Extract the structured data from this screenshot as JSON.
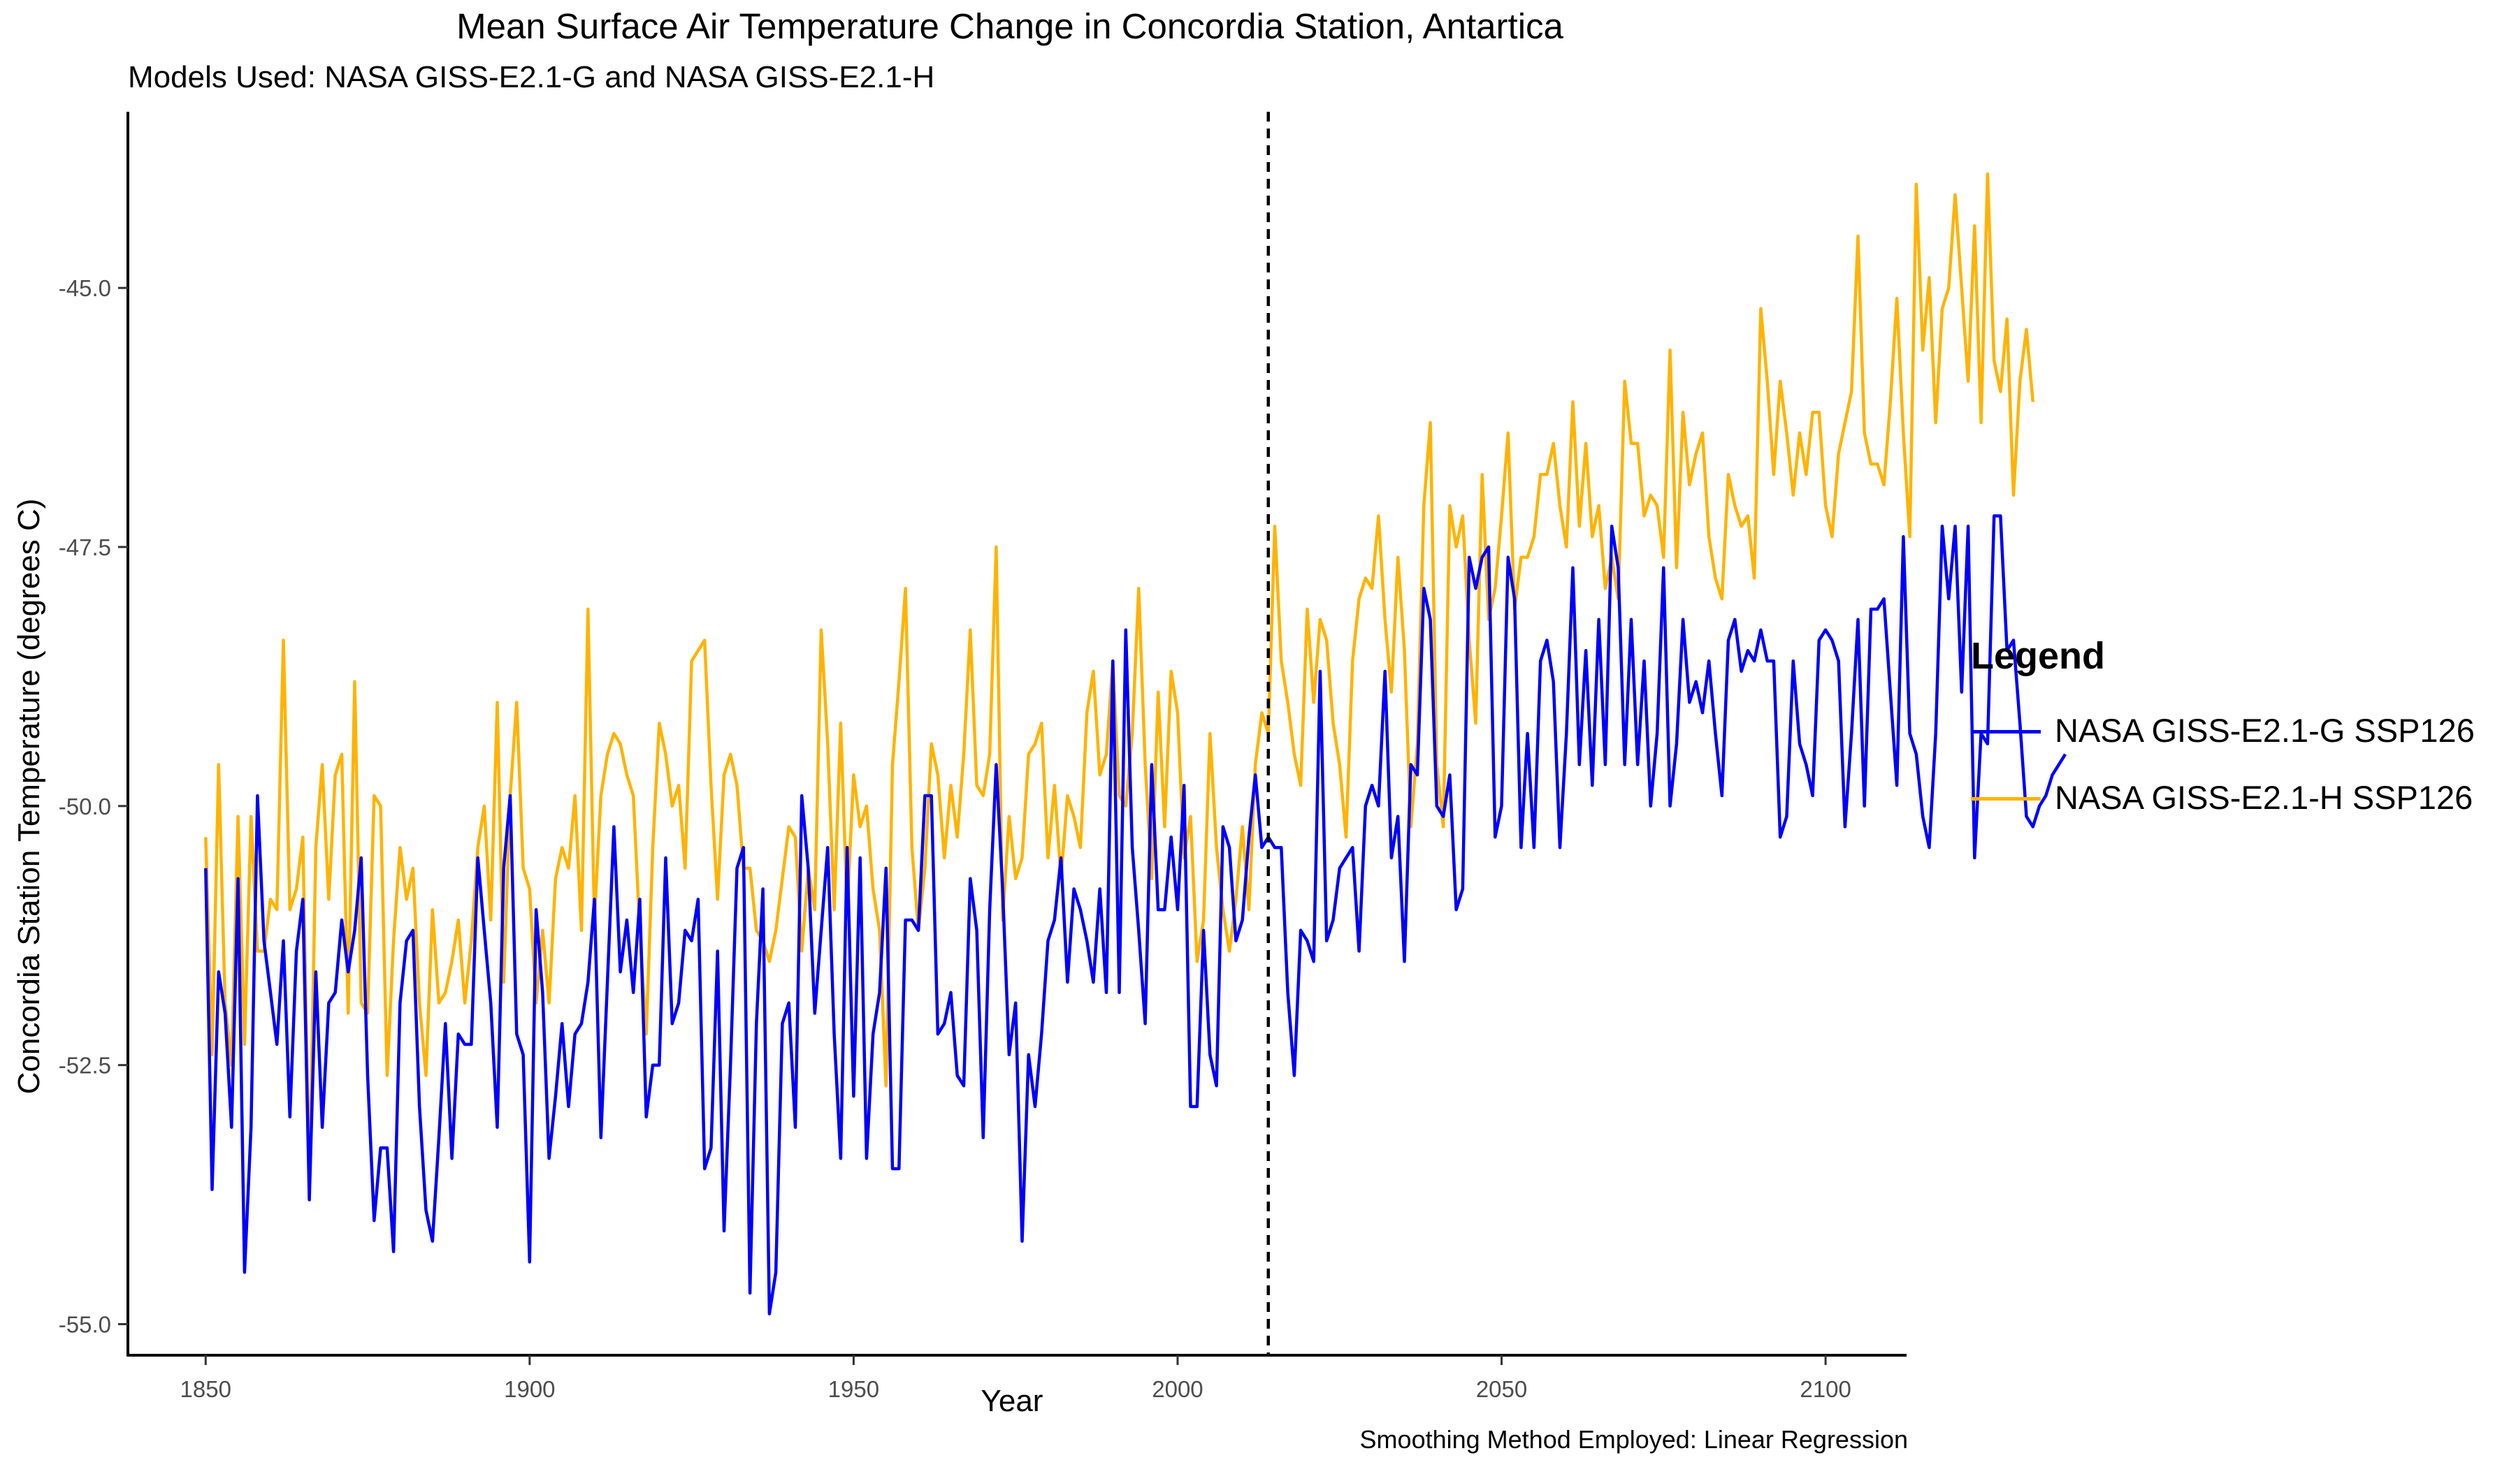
{
  "chart_data": {
    "type": "line",
    "title": "Mean Surface Air Temperature Change in Concordia Station, Antartica",
    "subtitle": "Models Used: NASA GISS-E2.1-G and NASA GISS-E2.1-H",
    "caption": "Smoothing Method Employed: Linear Regression",
    "xlabel": "Year",
    "ylabel": "Concordia Station Temperature (degrees C)",
    "xlim": [
      1838,
      2112.5
    ],
    "ylim": [
      -55.3,
      -43.3
    ],
    "x_ticks": [
      1850,
      1900,
      1950,
      2000,
      2050,
      2100
    ],
    "x_tick_labels": [
      "1850",
      "1900",
      "1950",
      "2000",
      "2050",
      "2100"
    ],
    "y_ticks": [
      -55.0,
      -52.5,
      -50.0,
      -47.5,
      -45.0
    ],
    "y_tick_labels": [
      "-55.0",
      "-52.5",
      "-50.0",
      "-47.5",
      "-45.0"
    ],
    "grid": false,
    "reference_line": {
      "x": 2014,
      "style": "dashed",
      "color": "#000000"
    },
    "legend": {
      "title": "Legend",
      "position": "right"
    },
    "x_start": 1850,
    "series": [
      {
        "name": "NASA GISS-E2.1-G SSP126",
        "color": "#0000ff",
        "values": [
          -50.6,
          -53.7,
          -51.6,
          -52.0,
          -53.1,
          -50.7,
          -54.5,
          -53.1,
          -49.9,
          -51.3,
          -51.8,
          -52.3,
          -51.3,
          -53.0,
          -51.4,
          -50.9,
          -53.8,
          -51.6,
          -53.1,
          -51.9,
          -51.8,
          -51.1,
          -51.6,
          -51.2,
          -50.5,
          -52.6,
          -54.0,
          -53.3,
          -53.3,
          -54.3,
          -51.9,
          -51.3,
          -51.2,
          -52.9,
          -53.9,
          -54.2,
          -53.2,
          -52.1,
          -53.4,
          -52.2,
          -52.3,
          -52.3,
          -50.5,
          -51.2,
          -51.9,
          -53.1,
          -50.6,
          -49.9,
          -52.2,
          -52.4,
          -54.4,
          -51.0,
          -51.8,
          -53.4,
          -52.8,
          -52.1,
          -52.9,
          -52.2,
          -52.1,
          -51.7,
          -50.9,
          -53.2,
          -51.7,
          -50.2,
          -51.6,
          -51.1,
          -51.8,
          -50.9,
          -53.0,
          -52.5,
          -52.5,
          -50.5,
          -52.1,
          -51.9,
          -51.2,
          -51.3,
          -50.9,
          -53.5,
          -53.3,
          -51.4,
          -54.1,
          -52.5,
          -50.6,
          -50.4,
          -54.7,
          -52.1,
          -50.8,
          -54.9,
          -54.5,
          -52.1,
          -51.9,
          -53.1,
          -49.9,
          -50.6,
          -52.0,
          -51.2,
          -50.4,
          -52.2,
          -53.4,
          -50.4,
          -52.8,
          -50.5,
          -53.4,
          -52.2,
          -51.8,
          -50.6,
          -53.5,
          -53.5,
          -51.1,
          -51.1,
          -51.2,
          -49.9,
          -49.9,
          -52.2,
          -52.1,
          -51.8,
          -52.6,
          -52.7,
          -50.7,
          -51.2,
          -53.2,
          -51.0,
          -49.6,
          -50.8,
          -52.4,
          -51.9,
          -54.2,
          -52.4,
          -52.9,
          -52.2,
          -51.3,
          -51.1,
          -50.5,
          -51.7,
          -50.8,
          -51.0,
          -51.3,
          -51.7,
          -50.8,
          -51.8,
          -48.6,
          -51.8,
          -48.3,
          -50.4,
          -51.2,
          -52.1,
          -49.6,
          -51.0,
          -51.0,
          -50.3,
          -51.0,
          -49.8,
          -52.9,
          -52.9,
          -51.2,
          -52.4,
          -52.7,
          -50.2,
          -50.4,
          -51.3,
          -51.1,
          -50.3,
          -49.7,
          -50.4,
          -50.3,
          -50.4,
          -50.4,
          -51.8,
          -52.6,
          -51.2,
          -51.3,
          -51.5,
          -48.7,
          -51.3,
          -51.1,
          -50.6,
          -50.5,
          -50.4,
          -51.4,
          -50.0,
          -49.8,
          -50.0,
          -48.7,
          -50.5,
          -50.1,
          -51.5,
          -49.6,
          -49.7,
          -47.9,
          -48.2,
          -50.0,
          -50.1,
          -49.7,
          -51.0,
          -50.8,
          -47.6,
          -47.9,
          -47.6,
          -47.5,
          -50.3,
          -50.0,
          -47.6,
          -48.0,
          -50.4,
          -49.3,
          -50.4,
          -48.6,
          -48.4,
          -48.8,
          -50.4,
          -49.3,
          -47.7,
          -49.6,
          -48.5,
          -49.8,
          -48.2,
          -49.6,
          -47.3,
          -47.7,
          -49.6,
          -48.2,
          -49.6,
          -48.6,
          -50.0,
          -49.3,
          -47.7,
          -50.0,
          -49.4,
          -48.2,
          -49.0,
          -48.8,
          -49.1,
          -48.6,
          -49.3,
          -49.9,
          -48.4,
          -48.2,
          -48.7,
          -48.5,
          -48.6,
          -48.3,
          -48.6,
          -48.6,
          -50.3,
          -50.1,
          -48.6,
          -49.4,
          -49.6,
          -49.9,
          -48.4,
          -48.3,
          -48.4,
          -48.6,
          -50.2,
          -49.3,
          -48.2,
          -50.0,
          -48.1,
          -48.1,
          -48.0,
          -48.9,
          -49.8,
          -47.4,
          -49.3,
          -49.5,
          -50.1,
          -50.4,
          -49.3,
          -47.3,
          -48.0,
          -47.3,
          -48.9,
          -47.3,
          -50.5,
          -49.3,
          -49.4,
          -47.2,
          -47.2,
          -48.5,
          -48.4,
          -49.2,
          -50.1,
          -50.2,
          -50.0,
          -49.9,
          -49.7,
          -49.6,
          -49.5
        ]
      },
      {
        "name": "NASA GISS-E2.1-H SSP126",
        "color": "#ffb300",
        "values": [
          -50.3,
          -52.4,
          -49.6,
          -51.9,
          -52.5,
          -50.1,
          -52.3,
          -50.1,
          -51.4,
          -51.4,
          -50.9,
          -51.0,
          -48.4,
          -51.0,
          -50.8,
          -50.3,
          -53.7,
          -50.4,
          -49.6,
          -50.9,
          -49.7,
          -49.5,
          -52.0,
          -48.8,
          -51.9,
          -52.0,
          -49.9,
          -50.0,
          -52.6,
          -51.3,
          -50.4,
          -50.9,
          -50.6,
          -51.9,
          -52.6,
          -51.0,
          -51.9,
          -51.8,
          -51.5,
          -51.1,
          -51.9,
          -51.3,
          -50.4,
          -50.0,
          -51.1,
          -49.0,
          -51.7,
          -49.9,
          -49.0,
          -50.6,
          -50.8,
          -51.9,
          -51.2,
          -51.9,
          -50.7,
          -50.4,
          -50.6,
          -49.9,
          -51.2,
          -48.1,
          -51.1,
          -49.9,
          -49.5,
          -49.3,
          -49.4,
          -49.7,
          -49.9,
          -51.2,
          -52.2,
          -50.4,
          -49.2,
          -49.5,
          -50.0,
          -49.8,
          -50.6,
          -48.6,
          -48.5,
          -48.4,
          -49.8,
          -50.9,
          -49.7,
          -49.5,
          -49.8,
          -50.6,
          -50.6,
          -51.2,
          -51.3,
          -51.5,
          -51.2,
          -50.7,
          -50.2,
          -50.3,
          -51.4,
          -50.6,
          -51.0,
          -48.3,
          -49.4,
          -51.0,
          -49.2,
          -51.0,
          -49.7,
          -50.2,
          -50.0,
          -50.8,
          -51.2,
          -52.7,
          -49.6,
          -48.8,
          -47.9,
          -50.4,
          -51.2,
          -50.6,
          -49.4,
          -49.7,
          -50.5,
          -49.8,
          -50.3,
          -49.5,
          -48.3,
          -49.8,
          -49.9,
          -49.5,
          -47.5,
          -51.1,
          -50.1,
          -50.7,
          -50.5,
          -49.5,
          -49.4,
          -49.2,
          -50.5,
          -49.8,
          -50.7,
          -49.9,
          -50.1,
          -50.4,
          -49.1,
          -48.7,
          -49.7,
          -49.5,
          -48.6,
          -49.9,
          -50.0,
          -49.3,
          -47.9,
          -49.6,
          -50.7,
          -48.9,
          -50.2,
          -48.7,
          -49.1,
          -50.5,
          -50.1,
          -51.5,
          -51.1,
          -49.3,
          -50.4,
          -51.0,
          -51.4,
          -50.9,
          -50.2,
          -51.0,
          -49.6,
          -49.1,
          -49.3,
          -47.3,
          -48.6,
          -49.0,
          -49.5,
          -49.8,
          -48.1,
          -49.0,
          -48.2,
          -48.4,
          -49.2,
          -49.6,
          -50.3,
          -48.6,
          -48.0,
          -47.8,
          -47.9,
          -47.2,
          -48.2,
          -48.9,
          -47.6,
          -48.5,
          -50.2,
          -49.4,
          -47.1,
          -46.3,
          -49.6,
          -50.2,
          -47.1,
          -47.5,
          -47.2,
          -48.4,
          -49.2,
          -46.8,
          -48.2,
          -47.9,
          -47.2,
          -46.4,
          -48.1,
          -47.6,
          -47.6,
          -47.4,
          -46.8,
          -46.8,
          -46.5,
          -47.1,
          -47.5,
          -46.1,
          -47.3,
          -46.5,
          -47.4,
          -47.1,
          -47.9,
          -47.6,
          -48.0,
          -45.9,
          -46.5,
          -46.5,
          -47.2,
          -47.0,
          -47.1,
          -47.6,
          -45.6,
          -47.7,
          -46.2,
          -46.9,
          -46.6,
          -46.4,
          -47.4,
          -47.8,
          -48.0,
          -46.8,
          -47.1,
          -47.3,
          -47.2,
          -47.8,
          -45.2,
          -45.9,
          -46.8,
          -45.9,
          -46.4,
          -47.0,
          -46.4,
          -46.8,
          -46.2,
          -46.2,
          -47.1,
          -47.4,
          -46.6,
          -46.3,
          -46.0,
          -44.5,
          -46.4,
          -46.7,
          -46.7,
          -46.9,
          -46.1,
          -45.1,
          -46.4,
          -47.4,
          -44.0,
          -45.6,
          -44.9,
          -46.3,
          -45.2,
          -45.0,
          -44.1,
          -45.0,
          -45.9,
          -44.4,
          -46.3,
          -43.9,
          -45.7,
          -46.0,
          -45.3,
          -47.0,
          -45.9,
          -45.4,
          -46.1
        ],
        "values_dense": [
          -50.3,
          -52.4,
          -49.6,
          -51.9,
          -52.5,
          -50.1,
          -52.3,
          -50.1,
          -51.4,
          -51.4,
          -50.9,
          -51.0,
          -48.4,
          -51.0,
          -50.8,
          -50.3,
          -53.7,
          -50.4,
          -49.6,
          -50.9,
          -49.7,
          -49.5,
          -52.0,
          -48.8,
          -51.9,
          -52.0,
          -49.9,
          -50.0,
          -52.6,
          -51.3,
          -50.4,
          -50.9,
          -50.6,
          -51.9,
          -52.6,
          -51.0,
          -51.9,
          -51.8,
          -51.5,
          -51.1,
          -51.9,
          -51.3,
          -50.4,
          -50.0,
          -51.1,
          -49.0,
          -51.7,
          -49.9,
          -49.0,
          -50.6,
          -50.8,
          -51.9,
          -51.2,
          -51.9,
          -50.7,
          -50.4,
          -50.6,
          -49.9,
          -51.2,
          -48.1,
          -51.1,
          -49.9,
          -49.5,
          -49.3,
          -49.4,
          -49.7,
          -49.9,
          -51.2,
          -52.2,
          -50.4,
          -49.2,
          -49.5,
          -50.0,
          -49.8,
          -50.6,
          -48.6,
          -48.5,
          -48.4,
          -49.8,
          -50.9,
          -49.7,
          -49.5,
          -49.8,
          -50.6,
          -50.6,
          -51.2,
          -51.3,
          -51.5,
          -51.2,
          -50.7,
          -50.2,
          -50.3,
          -51.4,
          -50.6,
          -51.0,
          -48.3,
          -49.4,
          -51.0,
          -49.2,
          -51.0,
          -49.7,
          -50.2,
          -50.0,
          -50.8,
          -51.2,
          -52.7,
          -49.6,
          -48.8,
          -47.9,
          -50.4,
          -51.2,
          -50.6,
          -49.4,
          -49.7,
          -50.5,
          -49.8,
          -50.3,
          -49.5,
          -48.3,
          -49.8,
          -49.9,
          -49.5,
          -47.5,
          -51.1,
          -50.1,
          -50.7,
          -50.5,
          -49.5,
          -49.4,
          -49.2,
          -50.5,
          -49.8,
          -50.7,
          -49.9,
          -50.1,
          -50.4,
          -49.1,
          -48.7,
          -49.7,
          -49.5,
          -48.6,
          -49.9,
          -50.0,
          -49.3,
          -47.9,
          -49.6,
          -50.7,
          -48.9,
          -50.2,
          -48.7,
          -49.1,
          -50.5,
          -50.1,
          -51.5,
          -51.1,
          -49.3,
          -50.4,
          -51.0,
          -51.4,
          -50.9,
          -50.2,
          -51.0,
          -49.6,
          -49.1,
          -49.3,
          -47.3,
          -48.6,
          -49.0,
          -49.5,
          -49.8,
          -48.1,
          -49.0,
          -48.2,
          -48.4,
          -49.2,
          -49.6,
          -50.3,
          -48.6,
          -48.0,
          -47.8,
          -47.9,
          -47.2,
          -48.2,
          -48.9,
          -47.6,
          -48.5,
          -50.2,
          -49.4,
          -47.1,
          -46.3,
          -49.6,
          -50.2,
          -47.1,
          -47.5,
          -47.2,
          -48.4,
          -49.2,
          -46.8,
          -48.2,
          -47.9,
          -47.2,
          -46.4,
          -48.1,
          -47.6,
          -47.6,
          -47.4,
          -46.8,
          -46.8,
          -46.5,
          -47.1,
          -47.5,
          -46.1,
          -47.3,
          -46.5,
          -47.4,
          -47.1,
          -47.9,
          -47.6,
          -48.0,
          -45.9,
          -46.5,
          -46.5,
          -47.2,
          -47.0,
          -47.1,
          -47.6,
          -45.6,
          -47.7,
          -46.2,
          -46.9,
          -46.6,
          -46.4,
          -47.4,
          -47.8,
          -48.0,
          -46.8,
          -47.1,
          -47.3,
          -47.2,
          -47.8,
          -45.2,
          -45.9,
          -46.8,
          -45.9,
          -46.4,
          -47.0,
          -46.4,
          -46.8,
          -46.2,
          -46.2,
          -47.1,
          -47.4,
          -46.6,
          -46.3,
          -46.0,
          -44.5,
          -46.4,
          -46.7,
          -46.7,
          -46.9,
          -46.1,
          -45.1,
          -46.4,
          -47.4,
          -44.0,
          -45.6,
          -44.9,
          -46.3,
          -45.2,
          -45.0,
          -44.1,
          -45.0,
          -45.9,
          -44.4,
          -46.3,
          -43.9,
          -45.7,
          -46.0,
          -45.3,
          -47.0,
          -45.9,
          -45.4,
          -46.1
        ]
      }
    ]
  }
}
